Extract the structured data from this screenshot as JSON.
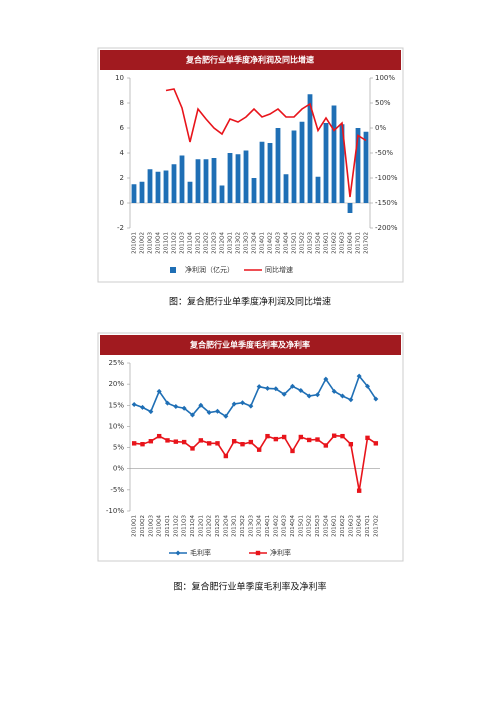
{
  "chart_data": [
    {
      "type": "combo",
      "title": "复合肥行业单季度净利润及同比增速",
      "categories": [
        "2010Q1",
        "2010Q2",
        "2010Q3",
        "2010Q4",
        "2011Q1",
        "2011Q2",
        "2011Q3",
        "2011Q4",
        "2012Q1",
        "2012Q2",
        "2012Q3",
        "2012Q4",
        "2013Q1",
        "2013Q2",
        "2013Q3",
        "2013Q4",
        "2014Q1",
        "2014Q2",
        "2014Q3",
        "2014Q4",
        "2015Q1",
        "2015Q2",
        "2015Q3",
        "2015Q4",
        "2016Q1",
        "2016Q2",
        "2016Q3",
        "2016Q4",
        "2017Q1",
        "2017Q2"
      ],
      "series": [
        {
          "name": "净利润（亿元）",
          "type": "bar",
          "color": "#1f6fb5",
          "values": [
            1.5,
            1.7,
            2.7,
            2.5,
            2.6,
            3.1,
            3.8,
            1.7,
            3.5,
            3.5,
            3.6,
            1.4,
            4.0,
            3.9,
            4.2,
            2.0,
            4.9,
            4.8,
            6.0,
            2.3,
            5.8,
            6.5,
            8.7,
            2.1,
            6.4,
            7.8,
            6.3,
            -0.8,
            6.0,
            5.7
          ]
        },
        {
          "name": "同比增速",
          "type": "line",
          "axis": "y2",
          "color": "#e8141b",
          "values": [
            null,
            null,
            null,
            null,
            75,
            78,
            40,
            -28,
            38,
            18,
            0,
            -12,
            18,
            12,
            22,
            38,
            22,
            28,
            38,
            22,
            22,
            38,
            48,
            -5,
            20,
            -5,
            10,
            -138,
            -15,
            -25
          ]
        }
      ],
      "ylim": [
        -2,
        10
      ],
      "yticks": [
        -2,
        0,
        2,
        4,
        6,
        8,
        10
      ],
      "y2lim": [
        -200,
        100
      ],
      "y2ticks": [
        {
          "value": -200,
          "label": "-200%"
        },
        {
          "value": -150,
          "label": "-150%"
        },
        {
          "value": -100,
          "label": "-100%"
        },
        {
          "value": -50,
          "label": "-50%"
        },
        {
          "value": 0,
          "label": "0%"
        },
        {
          "value": 50,
          "label": "50%"
        },
        {
          "value": 100,
          "label": "100%"
        }
      ],
      "grid": false,
      "legend": "bottom"
    },
    {
      "type": "line",
      "title": "复合肥行业单季度毛利率及净利率",
      "categories": [
        "2010Q1",
        "2010Q2",
        "2010Q3",
        "2010Q4",
        "2011Q1",
        "2011Q2",
        "2011Q3",
        "2011Q4",
        "2012Q1",
        "2012Q2",
        "2012Q3",
        "2012Q4",
        "2013Q1",
        "2013Q2",
        "2013Q3",
        "2013Q4",
        "2014Q1",
        "2014Q2",
        "2014Q3",
        "2014Q4",
        "2015Q1",
        "2015Q2",
        "2015Q3",
        "2015Q4",
        "2016Q1",
        "2016Q2",
        "2016Q3",
        "2016Q4",
        "2017Q1",
        "2017Q2"
      ],
      "series": [
        {
          "name": "毛利率",
          "marker": "diamond",
          "color": "#1f6fb5",
          "values": [
            15.2,
            14.5,
            13.5,
            18.3,
            15.5,
            14.7,
            14.3,
            12.7,
            15.0,
            13.3,
            13.6,
            12.4,
            15.3,
            15.6,
            14.8,
            19.4,
            19.0,
            18.9,
            17.6,
            19.5,
            18.5,
            17.2,
            17.5,
            21.2,
            18.3,
            17.2,
            16.3,
            21.9,
            19.5,
            16.5
          ]
        },
        {
          "name": "净利率",
          "marker": "square",
          "color": "#e8141b",
          "values": [
            6.0,
            5.8,
            6.5,
            7.7,
            6.7,
            6.4,
            6.3,
            4.8,
            6.7,
            6.0,
            6.0,
            3.0,
            6.5,
            5.8,
            6.3,
            4.5,
            7.7,
            7.0,
            7.5,
            4.2,
            7.5,
            6.8,
            6.9,
            5.5,
            7.8,
            7.7,
            5.8,
            -5.2,
            7.3,
            6.0
          ]
        }
      ],
      "ylim": [
        -10,
        25
      ],
      "yticks": [
        {
          "value": -10,
          "label": "-10%"
        },
        {
          "value": -5,
          "label": "-5%"
        },
        {
          "value": 0,
          "label": "0%"
        },
        {
          "value": 5,
          "label": "5%"
        },
        {
          "value": 10,
          "label": "10%"
        },
        {
          "value": 15,
          "label": "15%"
        },
        {
          "value": 20,
          "label": "20%"
        },
        {
          "value": 25,
          "label": "25%"
        }
      ],
      "grid": false,
      "legend": "bottom"
    }
  ],
  "captions": [
    "图：复合肥行业单季度净利润及同比增速",
    "图：复合肥行业单季度毛利率及净利率"
  ]
}
